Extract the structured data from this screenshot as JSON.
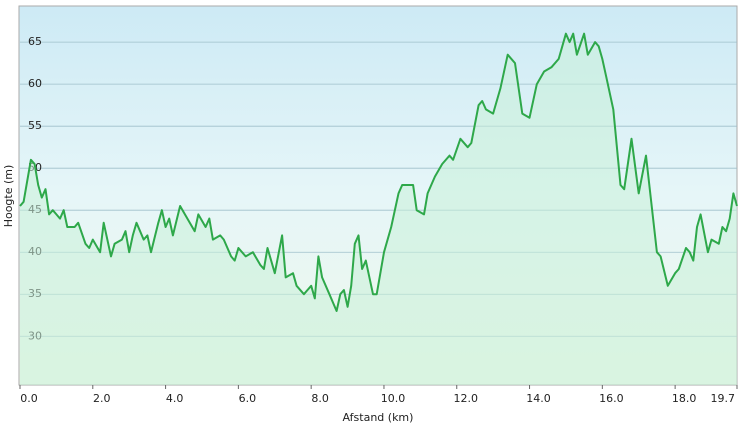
{
  "chart_data": {
    "type": "area",
    "x_label": "Afstand  (km)",
    "y_label": "Hoogte (m)",
    "x": [
      0.0,
      0.1,
      0.3,
      0.4,
      0.5,
      0.6,
      0.7,
      0.8,
      0.9,
      1.0,
      1.1,
      1.2,
      1.3,
      1.5,
      1.6,
      1.8,
      1.9,
      2.0,
      2.2,
      2.3,
      2.5,
      2.6,
      2.8,
      2.9,
      3.0,
      3.1,
      3.2,
      3.4,
      3.5,
      3.6,
      3.8,
      3.9,
      4.0,
      4.1,
      4.2,
      4.4,
      4.6,
      4.8,
      4.9,
      5.1,
      5.2,
      5.3,
      5.5,
      5.6,
      5.8,
      5.9,
      6.0,
      6.2,
      6.4,
      6.6,
      6.7,
      6.8,
      7.0,
      7.2,
      7.3,
      7.5,
      7.6,
      7.8,
      7.9,
      8.0,
      8.1,
      8.2,
      8.3,
      8.5,
      8.6,
      8.7,
      8.8,
      8.9,
      9.0,
      9.1,
      9.2,
      9.3,
      9.4,
      9.5,
      9.7,
      9.8,
      10.0,
      10.2,
      10.4,
      10.5,
      10.8,
      10.9,
      11.1,
      11.2,
      11.4,
      11.6,
      11.8,
      11.9,
      12.1,
      12.3,
      12.4,
      12.6,
      12.7,
      12.8,
      13.0,
      13.2,
      13.4,
      13.6,
      13.8,
      14.0,
      14.2,
      14.4,
      14.6,
      14.8,
      15.0,
      15.1,
      15.2,
      15.3,
      15.5,
      15.6,
      15.8,
      15.9,
      16.0,
      16.1,
      16.3,
      16.5,
      16.6,
      16.8,
      17.0,
      17.2,
      17.5,
      17.6,
      17.8,
      18.0,
      18.1,
      18.3,
      18.4,
      18.5,
      18.6,
      18.7,
      18.9,
      19.0,
      19.2,
      19.3,
      19.4,
      19.5,
      19.6,
      19.7
    ],
    "values": [
      45.5,
      46,
      51,
      50.5,
      48,
      46.5,
      47.5,
      44.5,
      45,
      44.5,
      44,
      45,
      43,
      43,
      43.5,
      41,
      40.5,
      41.5,
      40,
      43.5,
      39.5,
      41,
      41.5,
      42.5,
      40,
      42,
      43.5,
      41.5,
      42,
      40,
      43.5,
      45,
      43,
      44,
      42,
      45.5,
      44,
      42.5,
      44.5,
      43,
      44,
      41.5,
      42,
      41.5,
      39.5,
      39,
      40.5,
      39.5,
      40,
      38.5,
      38,
      40.5,
      37.5,
      42,
      37,
      37.5,
      36,
      35,
      35.5,
      36,
      34.5,
      39.5,
      37,
      35,
      34,
      33,
      35,
      35.5,
      33.5,
      36,
      41,
      42,
      38,
      39,
      35,
      35,
      40,
      43,
      47,
      48,
      48,
      45,
      44.5,
      47,
      49,
      50.5,
      51.5,
      51,
      53.5,
      52.5,
      53,
      57.5,
      58,
      57,
      56.5,
      59.5,
      63.5,
      62.5,
      56.5,
      56,
      60,
      61.5,
      62,
      63,
      66,
      65,
      66,
      63.5,
      66,
      63.5,
      65,
      64.5,
      63,
      61,
      57,
      48,
      47.5,
      53.5,
      47,
      51.5,
      40,
      39.5,
      36,
      37.5,
      38,
      40.5,
      40,
      39,
      43,
      44.5,
      40,
      41.5,
      41,
      43,
      42.5,
      44,
      47,
      45.5
    ],
    "color": "#2ea84a",
    "fill": "#c8f0d8",
    "xlim": [
      0,
      19.7
    ],
    "ylim": [
      24.2,
      69.3
    ],
    "xticks": [
      {
        "value": 0,
        "label": "0.0"
      },
      {
        "value": 2,
        "label": "2.0"
      },
      {
        "value": 4,
        "label": "4.0"
      },
      {
        "value": 6,
        "label": "6.0"
      },
      {
        "value": 8,
        "label": "8.0"
      },
      {
        "value": 10,
        "label": "10.0"
      },
      {
        "value": 12,
        "label": "12.0"
      },
      {
        "value": 14,
        "label": "14.0"
      },
      {
        "value": 16,
        "label": "16.0"
      },
      {
        "value": 18,
        "label": "18.0"
      },
      19.7
    ],
    "yticks": [
      30,
      35,
      40,
      45,
      50,
      55,
      60,
      65
    ],
    "grid": true
  }
}
